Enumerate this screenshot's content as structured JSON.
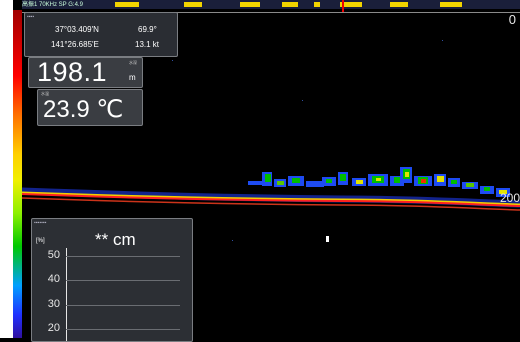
{
  "top_bar": {
    "label": "高振1  70KHz SP  G:4.9"
  },
  "echogram": {
    "range_top": "0",
    "range_bottom": "200",
    "colors": {
      "bottom_line": "#ff2020",
      "echo_high": "#f0f000",
      "echo_mid": "#00c800",
      "echo_low": "#2050ff"
    }
  },
  "position_panel": {
    "latitude": "37°03.409'N",
    "longitude": "141°26.685'E",
    "heading": "69.9°",
    "speed": "13.1 kt"
  },
  "depth": {
    "value": "198.1",
    "unit": "m",
    "sublabel": "水深"
  },
  "temperature": {
    "value": "23.9 ℃",
    "sublabel": "水温"
  },
  "fish_size_panel": {
    "title": "** cm",
    "unit": "[%]",
    "y_ticks": [
      "50",
      "40",
      "30",
      "20"
    ]
  },
  "icons": [
    "color-scale-bar",
    "mouse-cursor-icon"
  ]
}
